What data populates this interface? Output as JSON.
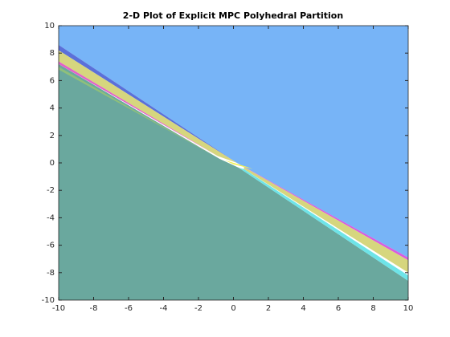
{
  "chart_data": {
    "type": "polygon",
    "title": "2-D Plot of Explicit MPC Polyhedral Partition",
    "xlim": [
      -10,
      10
    ],
    "ylim": [
      -10,
      10
    ],
    "xticks": [
      -10,
      -8,
      -6,
      -4,
      -2,
      0,
      2,
      4,
      6,
      8,
      10
    ],
    "yticks": [
      -10,
      -8,
      -6,
      -4,
      -2,
      0,
      2,
      4,
      6,
      8,
      10
    ],
    "regions": [
      {
        "color": "#6aa89e",
        "x": [
          -10,
          10,
          10,
          0.3,
          -0.8,
          -10
        ],
        "y": [
          -10,
          -10,
          -8.6,
          -0.35,
          0.3,
          7.2
        ]
      },
      {
        "color": "#77b4f7",
        "x": [
          -10,
          10,
          10,
          0.2,
          -10
        ],
        "y": [
          10,
          10,
          -6.9,
          0,
          8.6
        ]
      },
      {
        "color": "#5b70d9",
        "x": [
          -10,
          0.2,
          -10
        ],
        "y": [
          8.6,
          0,
          8.2
        ]
      },
      {
        "color": "#d6d67e",
        "x": [
          -10,
          0.2,
          -0.9,
          -10
        ],
        "y": [
          8.2,
          0,
          0.5,
          7.4
        ]
      },
      {
        "color": "#e262c9",
        "x": [
          -10,
          -0.9,
          -10
        ],
        "y": [
          7.4,
          0.5,
          7.2
        ]
      },
      {
        "color": "#8fc07a",
        "x": [
          -10,
          -0.8,
          -10
        ],
        "y": [
          7.0,
          0.3,
          6.8
        ]
      },
      {
        "color": "#d85ce0",
        "x": [
          0.2,
          10,
          10,
          0.6
        ],
        "y": [
          0,
          -6.9,
          -7.1,
          -0.3
        ]
      },
      {
        "color": "#d6d67e",
        "x": [
          0.6,
          10,
          10,
          0.6
        ],
        "y": [
          -0.3,
          -7.1,
          -8.0,
          -0.45
        ]
      },
      {
        "color": "#6ee4e8",
        "x": [
          0.6,
          10,
          10,
          0.3
        ],
        "y": [
          -0.45,
          -8.2,
          -8.6,
          -0.35
        ]
      },
      {
        "color": "#f2f250",
        "x": [
          -0.5,
          0.8,
          1.1,
          0
        ],
        "y": [
          0.2,
          -0.3,
          -0.45,
          -0.1
        ]
      }
    ]
  }
}
